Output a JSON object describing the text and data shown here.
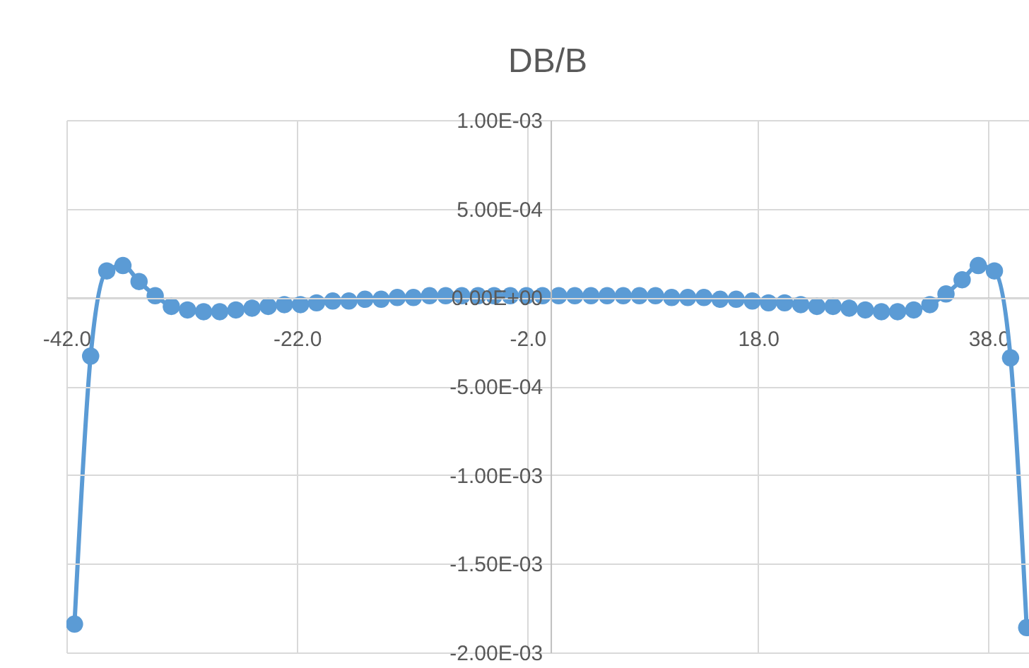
{
  "chart_data": {
    "type": "line",
    "title": "DB/B",
    "x": [
      -41.3,
      -39.9,
      -38.5,
      -37.1,
      -35.7,
      -34.3,
      -32.9,
      -31.5,
      -30.1,
      -28.7,
      -27.3,
      -25.9,
      -24.5,
      -23.1,
      -21.7,
      -20.3,
      -18.9,
      -17.5,
      -16.1,
      -14.7,
      -13.3,
      -11.9,
      -10.5,
      -9.1,
      -7.7,
      -6.3,
      -4.9,
      -3.5,
      -2.1,
      -0.7,
      0.7,
      2.1,
      3.5,
      4.9,
      6.3,
      7.7,
      9.1,
      10.5,
      11.9,
      13.3,
      14.7,
      16.1,
      17.5,
      18.9,
      20.3,
      21.7,
      23.1,
      24.5,
      25.9,
      27.3,
      28.7,
      30.1,
      31.5,
      32.9,
      34.3,
      35.7,
      37.1,
      38.5,
      39.9,
      41.3
    ],
    "series": [
      {
        "color": "#5b9bd5",
        "values": [
          -0.00184,
          -0.00033,
          0.00015,
          0.00018,
          9e-05,
          1e-05,
          -5e-05,
          -7e-05,
          -8e-05,
          -8e-05,
          -7e-05,
          -6e-05,
          -5e-05,
          -4e-05,
          -4e-05,
          -3e-05,
          -2e-05,
          -2e-05,
          -1e-05,
          -1e-05,
          0.0,
          0.0,
          1e-05,
          1e-05,
          1e-05,
          1e-05,
          1e-05,
          1e-05,
          1e-05,
          1e-05,
          1e-05,
          1e-05,
          1e-05,
          1e-05,
          1e-05,
          1e-05,
          1e-05,
          0.0,
          0.0,
          0.0,
          -1e-05,
          -1e-05,
          -2e-05,
          -3e-05,
          -3e-05,
          -4e-05,
          -5e-05,
          -5e-05,
          -6e-05,
          -7e-05,
          -8e-05,
          -8e-05,
          -7e-05,
          -4e-05,
          2e-05,
          0.0001,
          0.00018,
          0.00015,
          -0.00034,
          -0.00186
        ]
      }
    ],
    "xlim": [
      -42,
      41.5
    ],
    "xticks": [
      {
        "value": -42,
        "label": "-42.0"
      },
      {
        "value": -22,
        "label": "-22.0"
      },
      {
        "value": -2,
        "label": "-2.0"
      },
      {
        "value": 18,
        "label": "18.0"
      },
      {
        "value": 38,
        "label": "38.0"
      }
    ],
    "ylim": [
      -0.002,
      0.001
    ],
    "yticks": [
      {
        "value": 0.001,
        "label": "1.00E-03"
      },
      {
        "value": 0.0005,
        "label": "5.00E-04"
      },
      {
        "value": 0,
        "label": "0.00E+00"
      },
      {
        "value": -0.0005,
        "label": "-5.00E-04"
      },
      {
        "value": -0.001,
        "label": "-1.00E-03"
      },
      {
        "value": -0.0015,
        "label": "-1.50E-03"
      },
      {
        "value": -0.002,
        "label": "-2.00E-03"
      }
    ],
    "grid": true,
    "marker": "circle",
    "line_style": "solid"
  }
}
